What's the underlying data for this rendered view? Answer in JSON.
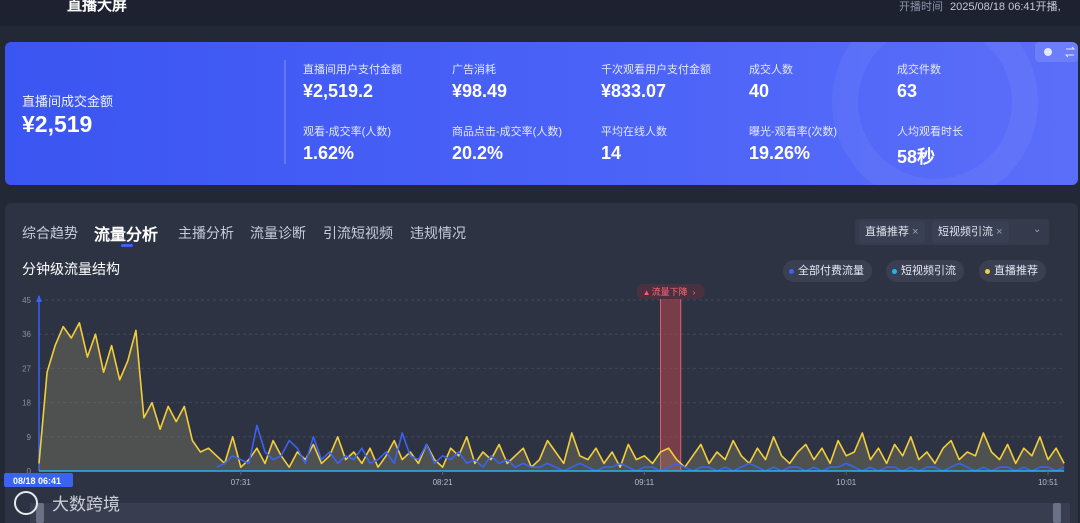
{
  "header": {
    "title": "直播大屏",
    "start_label": "开播时间",
    "start_time": "2025/08/18 06:41开播,"
  },
  "summary": {
    "main": {
      "label": "直播间成交金额",
      "value": "¥2,519"
    },
    "metrics": [
      {
        "label": "直播间用户支付金额",
        "value": "¥2,519.2"
      },
      {
        "label": "广告消耗",
        "value": "¥98.49"
      },
      {
        "label": "千次观看用户支付金额",
        "value": "¥833.07"
      },
      {
        "label": "成交人数",
        "value": "40"
      },
      {
        "label": "成交件数",
        "value": "63"
      },
      {
        "label": "观看-成交率(人数)",
        "value": "1.62%"
      },
      {
        "label": "商品点击-成交率(人数)",
        "value": "20.2%"
      },
      {
        "label": "平均在线人数",
        "value": "14"
      },
      {
        "label": "曝光-观看率(次数)",
        "value": "19.26%"
      },
      {
        "label": "人均观看时长",
        "value": "58秒"
      }
    ]
  },
  "tabs": [
    "综合趋势",
    "流量分析",
    "主播分析",
    "流量诊断",
    "引流短视频",
    "违规情况"
  ],
  "filters": [
    "直播推荐",
    "短视频引流"
  ],
  "watermark": "大数跨境",
  "chart_data": {
    "type": "line",
    "title": "分钟级流量结构",
    "categories": [
      "08/18 06:41",
      null,
      null,
      null,
      null,
      null,
      null,
      null,
      null,
      null,
      null,
      null,
      null,
      null,
      null,
      null,
      null,
      null,
      null,
      null,
      null,
      null,
      null,
      null,
      null,
      "07:31",
      null,
      null,
      null,
      null,
      null,
      null,
      null,
      null,
      null,
      null,
      null,
      null,
      null,
      null,
      null,
      null,
      null,
      null,
      null,
      null,
      null,
      null,
      null,
      null,
      "08:21",
      null,
      null,
      null,
      null,
      null,
      null,
      null,
      null,
      null,
      null,
      null,
      null,
      null,
      null,
      null,
      null,
      null,
      null,
      null,
      null,
      null,
      null,
      null,
      null,
      "09:11",
      null,
      null,
      null,
      null,
      null,
      null,
      null,
      null,
      null,
      null,
      null,
      null,
      null,
      null,
      null,
      null,
      null,
      null,
      null,
      null,
      null,
      null,
      null,
      null,
      "10:01",
      null,
      null,
      null,
      null,
      null,
      null,
      null,
      null,
      null,
      null,
      null,
      null,
      null,
      null,
      null,
      null,
      null,
      null,
      null,
      null,
      null,
      null,
      null,
      null,
      "10:51",
      null,
      null
    ],
    "series": [
      {
        "name": "全部付费流量",
        "color": "#3a63f0",
        "values": [
          null,
          null,
          null,
          null,
          null,
          null,
          null,
          null,
          null,
          null,
          null,
          null,
          null,
          null,
          null,
          null,
          null,
          null,
          null,
          null,
          null,
          null,
          1,
          2,
          4,
          3,
          2,
          12,
          5,
          3,
          4,
          8,
          6,
          2,
          9,
          3,
          5,
          2,
          4,
          3,
          6,
          2,
          3,
          5,
          2,
          10,
          4,
          3,
          7,
          2,
          4,
          3,
          5,
          2,
          3,
          1,
          4,
          2,
          3,
          1,
          2,
          1,
          1,
          2,
          1,
          0,
          1,
          2,
          1,
          0,
          1,
          1,
          2,
          1,
          0,
          1,
          1,
          0,
          1,
          2,
          1,
          0,
          1,
          1,
          0,
          1,
          0,
          1,
          2,
          1,
          0,
          1,
          0,
          1,
          1,
          0,
          1,
          0,
          1,
          1,
          2,
          1,
          0,
          1,
          0,
          1,
          1,
          0,
          1,
          0,
          1,
          1,
          0,
          1,
          2,
          1,
          0,
          1,
          0,
          1,
          1,
          0,
          1,
          0,
          1,
          1,
          0,
          1
        ]
      },
      {
        "name": "短视频引流",
        "color": "#27b4ee",
        "values": [
          0,
          0,
          0,
          0,
          0,
          0,
          0,
          0,
          0,
          0,
          0,
          0,
          0,
          0,
          0,
          0,
          0,
          0,
          0,
          0,
          0,
          0,
          0,
          0,
          0,
          0,
          0,
          0,
          0,
          0,
          0,
          0,
          0,
          0,
          0,
          0,
          0,
          0,
          0,
          0,
          0,
          0,
          0,
          0,
          0,
          0,
          0,
          0,
          0,
          0,
          0,
          0,
          0,
          0,
          0,
          0,
          0,
          0,
          0,
          0,
          0,
          0,
          0,
          0,
          0,
          0,
          0,
          0,
          0,
          0,
          0,
          0,
          0,
          0,
          0,
          0,
          0,
          0,
          0,
          0,
          0,
          0,
          0,
          0,
          0,
          0,
          0,
          0,
          0,
          0,
          0,
          0,
          0,
          0,
          0,
          0,
          0,
          0,
          0,
          0,
          0,
          0,
          0,
          0,
          0,
          0,
          0,
          0,
          0,
          0,
          0,
          0,
          0,
          0,
          0,
          0,
          0,
          0,
          0,
          0,
          0,
          0,
          0,
          0,
          0,
          0,
          0,
          0
        ]
      },
      {
        "name": "直播推荐",
        "color": "#f2cf3a",
        "values": [
          2,
          26,
          33,
          38,
          35,
          39,
          30,
          36,
          26,
          33,
          24,
          29,
          37,
          14,
          18,
          11,
          17,
          13,
          17,
          8,
          5,
          6,
          4,
          2,
          9,
          1,
          3,
          6,
          2,
          8,
          4,
          1,
          5,
          3,
          7,
          2,
          4,
          9,
          3,
          5,
          2,
          6,
          1,
          4,
          8,
          3,
          5,
          2,
          7,
          3,
          1,
          6,
          4,
          9,
          2,
          5,
          3,
          7,
          2,
          4,
          6,
          1,
          3,
          8,
          5,
          2,
          10,
          4,
          3,
          6,
          2,
          5,
          1,
          7,
          3,
          4,
          2,
          5,
          6,
          3,
          1,
          4,
          7,
          2,
          5,
          3,
          8,
          4,
          2,
          6,
          3,
          9,
          4,
          2,
          5,
          7,
          3,
          6,
          2,
          8,
          4,
          5,
          10,
          3,
          6,
          2,
          7,
          4,
          9,
          3,
          5,
          2,
          6,
          8,
          3,
          5,
          4,
          10,
          5,
          3,
          7,
          2,
          6,
          4,
          9,
          3,
          6,
          2
        ]
      }
    ],
    "ylim": [
      0,
      45
    ],
    "yticks": [
      0,
      9,
      18,
      27,
      36,
      45
    ],
    "grid": true,
    "annotations": [
      {
        "text": "流量下降",
        "x": [
          77,
          79
        ]
      }
    ]
  }
}
